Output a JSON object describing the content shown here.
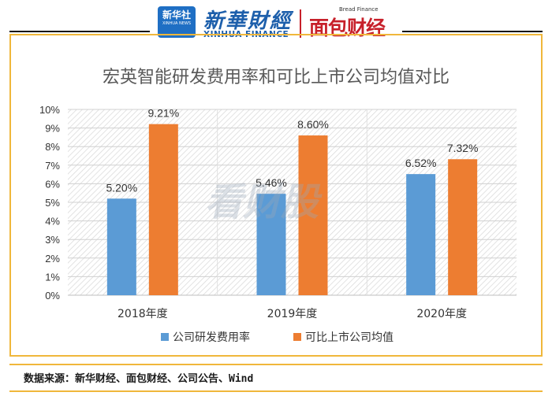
{
  "header": {
    "badge_title": "新华社",
    "badge_sub": "XINHUA NEWS",
    "brand_cn": "新華財經",
    "brand_en": "XINHUA FINANCE",
    "brand2_small": "Bread Finance",
    "brand2": "面包财经"
  },
  "chart_data": {
    "type": "bar",
    "title": "宏英智能研发费用率和可比上市公司均值对比",
    "categories": [
      "2018年度",
      "2019年度",
      "2020年度"
    ],
    "series": [
      {
        "name": "公司研发费用率",
        "values": [
          5.2,
          5.46,
          6.52
        ],
        "labels": [
          "5.20%",
          "5.46%",
          "6.52%"
        ],
        "color": "#5b9bd5"
      },
      {
        "name": "可比上市公司均值",
        "values": [
          9.21,
          8.6,
          7.32
        ],
        "labels": [
          "9.21%",
          "8.60%",
          "7.32%"
        ],
        "color": "#ed7d31"
      }
    ],
    "ylim": [
      0,
      10
    ],
    "yticks": [
      "0%",
      "1%",
      "2%",
      "3%",
      "4%",
      "5%",
      "6%",
      "7%",
      "8%",
      "9%",
      "10%"
    ],
    "grid": true,
    "legend": "bottom",
    "watermark": "看财股"
  },
  "source": "数据来源：新华财经、面包财经、公司公告、Wind"
}
